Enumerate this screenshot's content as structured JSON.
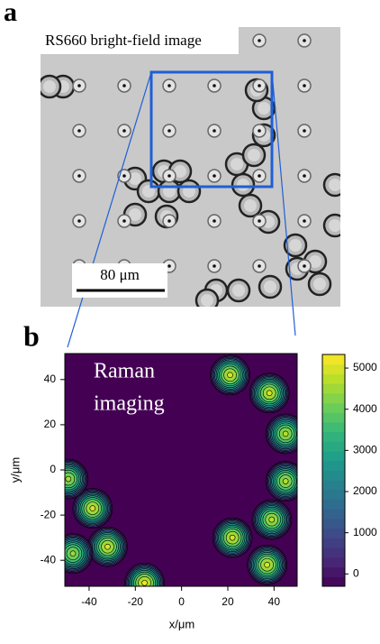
{
  "panel_a": {
    "label": "a",
    "title": "RS660 bright-field image",
    "scale_bar": "80 μm"
  },
  "chart_data": {
    "type": "contour",
    "panel_label": "b",
    "annotation": [
      "Raman",
      "imaging"
    ],
    "xlabel": "x/μm",
    "ylabel": "y/μm",
    "xlim": [
      -50.5,
      50
    ],
    "ylim": [
      -51.5,
      51.5
    ],
    "xticks": [
      -40,
      -20,
      0,
      20,
      40
    ],
    "yticks": [
      -40,
      -20,
      0,
      20,
      40
    ],
    "zlim": [
      -300,
      5330
    ],
    "zticks": [
      0,
      1000,
      2000,
      3000,
      4000,
      5000
    ],
    "colormap": [
      "#440154",
      "#482878",
      "#3e4989",
      "#31688e",
      "#26828e",
      "#1f9e89",
      "#35b779",
      "#6ece58",
      "#b5de2b",
      "#fde725"
    ],
    "peaks": {
      "x": [
        21,
        38,
        45,
        45,
        39,
        22,
        37,
        -38.5,
        -32,
        -16,
        -49,
        -47
      ],
      "y": [
        42,
        34,
        16,
        -5,
        -22,
        -30,
        -42,
        -17,
        -34,
        -50,
        -4,
        -37
      ],
      "values": [
        5000,
        5000,
        4700,
        4700,
        4800,
        5000,
        5000,
        5000,
        5000,
        5200,
        4600,
        4500
      ]
    }
  }
}
